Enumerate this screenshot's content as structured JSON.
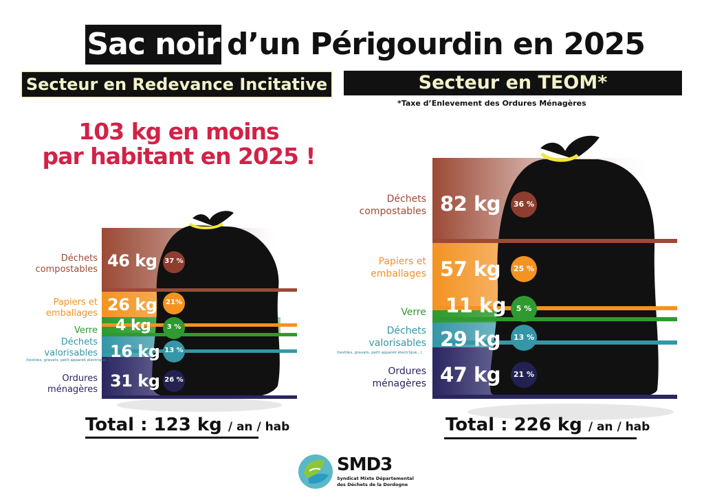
{
  "title": {
    "highlight": "Sac noir",
    "rest": "d’un Périgourdin en 2025"
  },
  "left": {
    "sector": "Secteur en Redevance Incitative",
    "headline_line1": "103 kg en moins",
    "headline_line2": "par habitant en 2025 !",
    "categories": [
      {
        "label_line1": "Déchets",
        "label_line2": "compostables",
        "kg": "46 kg",
        "pct": "37 %",
        "color": "#9c4a36"
      },
      {
        "label_line1": "Papiers et",
        "label_line2": "emballages",
        "kg": "26 kg",
        "pct": "21%",
        "color": "#f39322"
      },
      {
        "label_line1": "Verre",
        "label_line2": "",
        "kg": "4 kg",
        "pct": "3 %",
        "color": "#2e9a2f"
      },
      {
        "label_line1": "Déchets",
        "label_line2": "valorisables",
        "kg": "16 kg",
        "pct": "13 %",
        "color": "#3596a7",
        "note": "(textiles, gravats, petit appareil électrique...)"
      },
      {
        "label_line1": "Ordures",
        "label_line2": "ménagères",
        "kg": "31 kg",
        "pct": "26 %",
        "color": "#2a2660"
      }
    ],
    "total_main": "Total : 123 kg",
    "total_unit": "/ an / hab"
  },
  "right": {
    "sector": "Secteur en TEOM*",
    "note": "*Taxe d’Enlevement des Ordures Ménagères",
    "categories": [
      {
        "label_line1": "Déchets",
        "label_line2": "compostables",
        "kg": "82 kg",
        "pct": "36 %",
        "color": "#9c4a36"
      },
      {
        "label_line1": "Papiers et",
        "label_line2": "emballages",
        "kg": "57 kg",
        "pct": "25 %",
        "color": "#f39322"
      },
      {
        "label_line1": "Verre",
        "label_line2": "",
        "kg": "11 kg",
        "pct": "5 %",
        "color": "#2e9a2f"
      },
      {
        "label_line1": "Déchets",
        "label_line2": "valorisables",
        "kg": "29 kg",
        "pct": "13 %",
        "color": "#3596a7",
        "note": "(textiles, gravats, petit appareil électrique...)"
      },
      {
        "label_line1": "Ordures",
        "label_line2": "ménagères",
        "kg": "47 kg",
        "pct": "21 %",
        "color": "#2a2660"
      }
    ],
    "total_main": "Total : 226 kg",
    "total_unit": "/ an / hab"
  },
  "logo": {
    "name": "SMD3",
    "line1": "Syndicat Mixte Départemental",
    "line2": "des Déchets de la Dordogne"
  },
  "colors": {
    "title_accent": "#d12247",
    "sector_text": "#f3f1c9",
    "bag": "#111111",
    "tie": "#f2e63a"
  },
  "icons": {
    "logo": "smd3-leaf-hand-logo-icon",
    "bag": "garbage-bag-icon"
  }
}
